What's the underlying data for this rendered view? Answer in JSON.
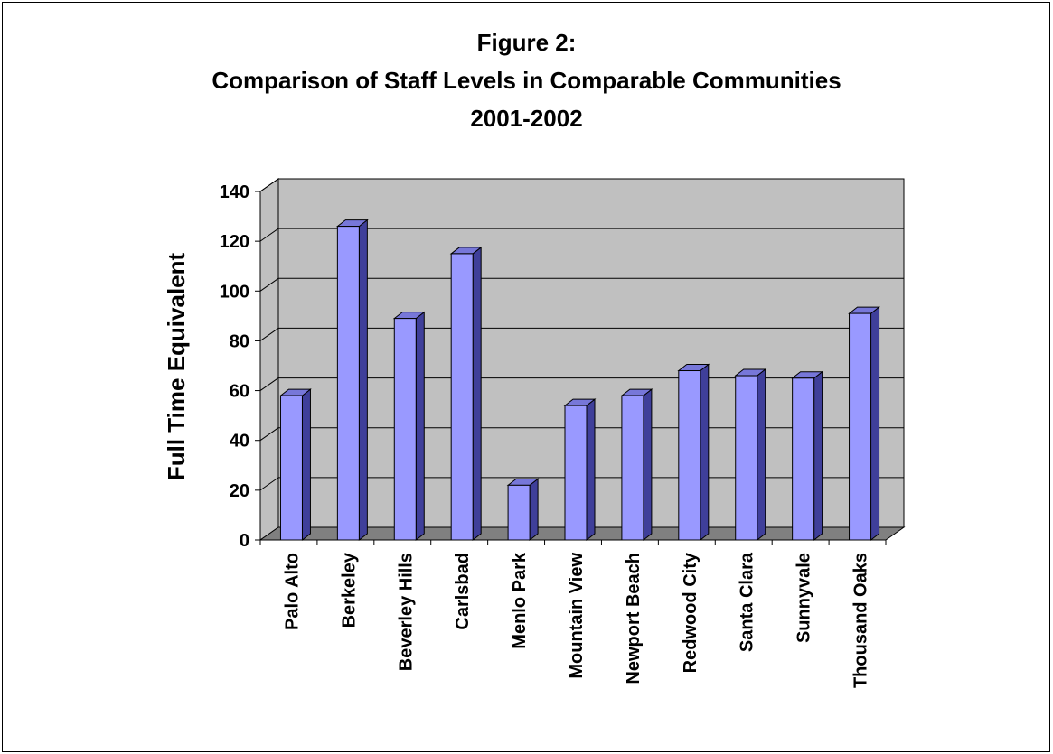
{
  "chart_data": {
    "type": "bar",
    "title_lines": [
      "Figure 2:",
      "Comparison of Staff Levels in Comparable Communities",
      "2001-2002"
    ],
    "xlabel": "",
    "ylabel": "Full Time Equivalent",
    "categories": [
      "Palo Alto",
      "Berkeley",
      "Beverley Hills",
      "Carlsbad",
      "Menlo Park",
      "Mountain View",
      "Newport Beach",
      "Redwood City",
      "Santa Clara",
      "Sunnyvale",
      "Thousand Oaks"
    ],
    "values": [
      58,
      126,
      89,
      115,
      22,
      54,
      58,
      68,
      66,
      65,
      91
    ],
    "ylim": [
      0,
      140
    ],
    "yticks": [
      0,
      20,
      40,
      60,
      80,
      100,
      120,
      140
    ],
    "grid": true,
    "legend": "none",
    "colors": {
      "bar_front": "#9999ff",
      "bar_side": "#3f3f9a",
      "bar_top": "#7777d9",
      "wall": "#c0c0c0",
      "floor": "#808080",
      "gridline": "#000000"
    }
  }
}
